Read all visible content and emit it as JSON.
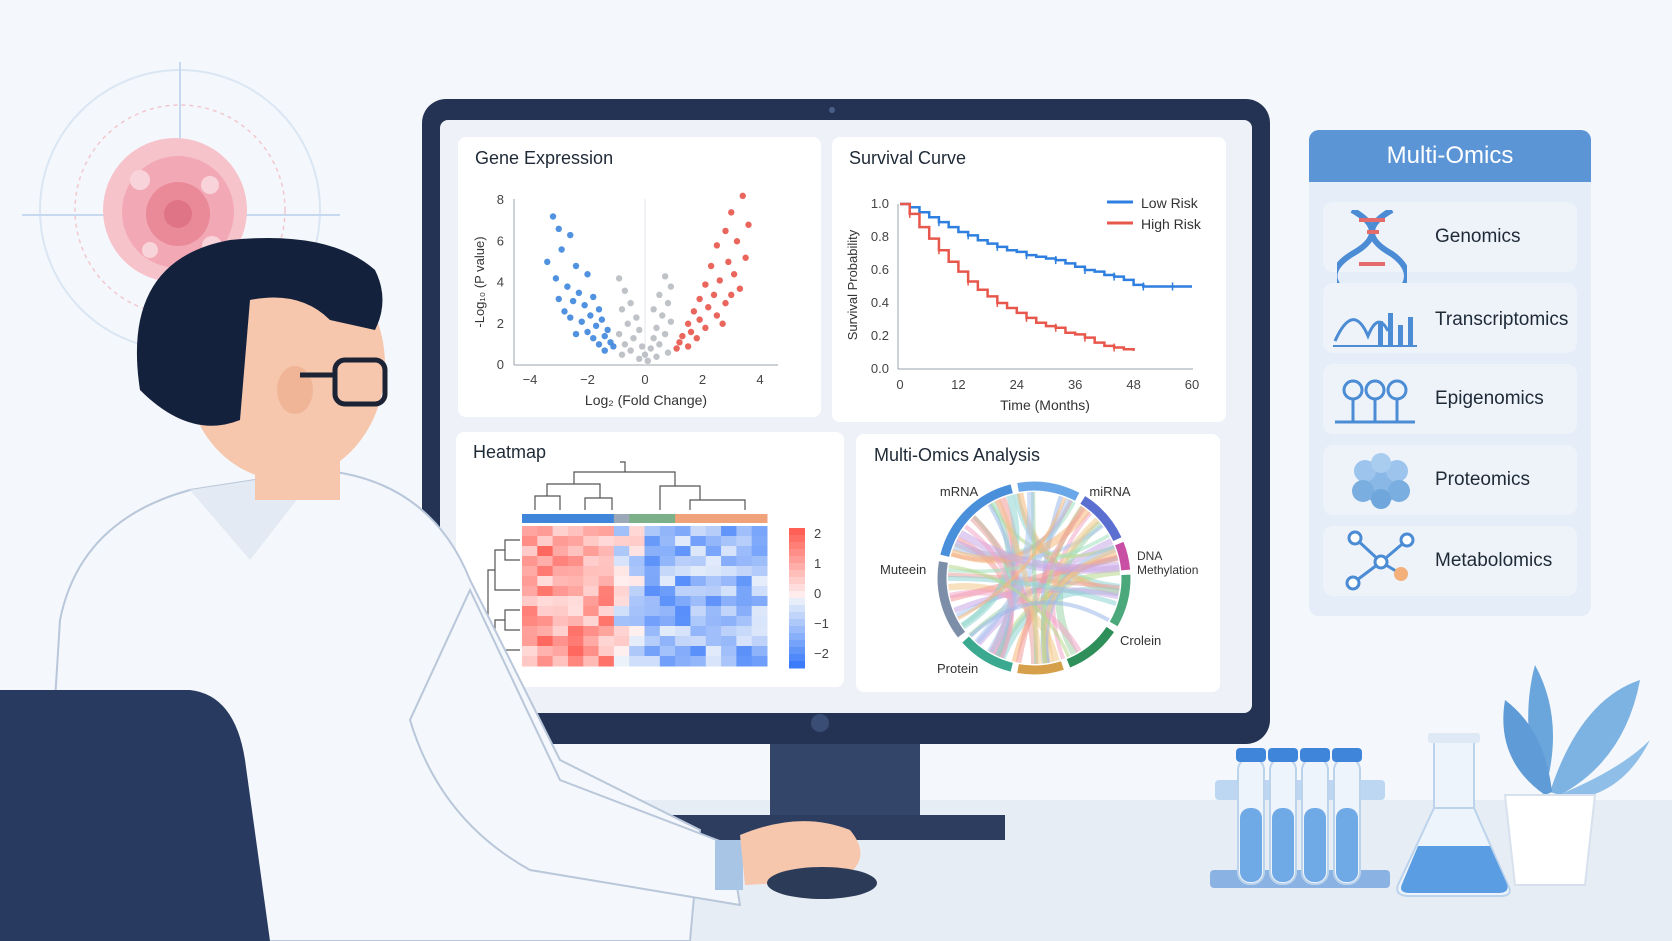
{
  "colors": {
    "up": "#e8554b",
    "down": "#3d86dc",
    "ns": "#b8bcc2",
    "low_risk": "#2f7fe0",
    "high_risk": "#e8574c",
    "accent": "#5b95d6"
  },
  "panels": {
    "gene_expression": "Gene Expression",
    "survival": "Survival Curve",
    "heatmap": "Heatmap",
    "multi_omics": "Multi-Omics Analysis"
  },
  "chart_data": [
    {
      "type": "scatter",
      "title": "Gene Expression",
      "xlabel": "Log₂ (Fold Change)",
      "ylabel": "-Log₁₀ (P value)",
      "xlim": [
        -4,
        4
      ],
      "ylim": [
        0,
        8
      ],
      "xticks": [
        "-4",
        "-2",
        "0",
        "2",
        "4"
      ],
      "yticks": [
        "0",
        "2",
        "4",
        "6",
        "8"
      ],
      "series": [
        {
          "group": "down",
          "points": [
            [
              -3.2,
              7.2
            ],
            [
              -3.0,
              6.6
            ],
            [
              -2.6,
              6.3
            ],
            [
              -2.9,
              5.6
            ],
            [
              -3.4,
              5.0
            ],
            [
              -2.4,
              4.8
            ],
            [
              -2.0,
              4.4
            ],
            [
              -3.1,
              4.2
            ],
            [
              -2.7,
              3.8
            ],
            [
              -2.3,
              3.5
            ],
            [
              -1.8,
              3.3
            ],
            [
              -2.5,
              3.1
            ],
            [
              -2.1,
              2.9
            ],
            [
              -1.6,
              2.7
            ],
            [
              -2.8,
              2.6
            ],
            [
              -1.9,
              2.4
            ],
            [
              -1.5,
              2.2
            ],
            [
              -2.2,
              2.1
            ],
            [
              -1.7,
              1.9
            ],
            [
              -1.3,
              1.7
            ],
            [
              -2.0,
              1.6
            ],
            [
              -1.4,
              1.4
            ],
            [
              -1.8,
              1.3
            ],
            [
              -1.2,
              1.1
            ],
            [
              -1.6,
              1.0
            ],
            [
              -1.1,
              0.9
            ],
            [
              -1.4,
              0.7
            ],
            [
              -2.4,
              1.5
            ],
            [
              -3.0,
              3.2
            ],
            [
              -2.6,
              2.3
            ]
          ]
        },
        {
          "group": "up",
          "points": [
            [
              3.4,
              8.2
            ],
            [
              3.0,
              7.4
            ],
            [
              3.6,
              6.8
            ],
            [
              2.8,
              6.5
            ],
            [
              3.2,
              6.0
            ],
            [
              2.5,
              5.8
            ],
            [
              3.5,
              5.2
            ],
            [
              2.9,
              5.0
            ],
            [
              2.3,
              4.8
            ],
            [
              3.1,
              4.4
            ],
            [
              2.6,
              4.1
            ],
            [
              2.1,
              3.9
            ],
            [
              3.3,
              3.7
            ],
            [
              2.4,
              3.4
            ],
            [
              1.9,
              3.2
            ],
            [
              2.8,
              3.0
            ],
            [
              2.2,
              2.8
            ],
            [
              1.7,
              2.6
            ],
            [
              2.5,
              2.4
            ],
            [
              1.9,
              2.2
            ],
            [
              1.5,
              2.0
            ],
            [
              2.1,
              1.8
            ],
            [
              1.6,
              1.6
            ],
            [
              1.3,
              1.4
            ],
            [
              1.8,
              1.3
            ],
            [
              1.2,
              1.1
            ],
            [
              1.5,
              0.9
            ],
            [
              1.1,
              0.8
            ],
            [
              2.7,
              2.0
            ],
            [
              3.0,
              3.4
            ]
          ]
        },
        {
          "group": "ns",
          "points": [
            [
              -0.9,
              4.2
            ],
            [
              -0.7,
              3.6
            ],
            [
              -0.5,
              3.0
            ],
            [
              -0.8,
              2.7
            ],
            [
              -0.3,
              2.3
            ],
            [
              -0.6,
              2.0
            ],
            [
              -0.2,
              1.7
            ],
            [
              -0.9,
              1.5
            ],
            [
              -0.4,
              1.3
            ],
            [
              -0.7,
              1.0
            ],
            [
              -0.1,
              0.9
            ],
            [
              -0.5,
              0.7
            ],
            [
              0.0,
              0.5
            ],
            [
              0.2,
              0.8
            ],
            [
              0.5,
              1.0
            ],
            [
              0.3,
              1.3
            ],
            [
              0.7,
              1.5
            ],
            [
              0.4,
              1.8
            ],
            [
              0.9,
              2.1
            ],
            [
              0.6,
              2.4
            ],
            [
              0.3,
              2.7
            ],
            [
              0.8,
              3.0
            ],
            [
              0.5,
              3.4
            ],
            [
              0.9,
              3.8
            ],
            [
              0.7,
              4.3
            ],
            [
              -0.2,
              0.3
            ],
            [
              0.1,
              0.2
            ],
            [
              -0.8,
              0.5
            ],
            [
              0.8,
              0.6
            ],
            [
              0.4,
              0.4
            ]
          ]
        }
      ]
    },
    {
      "type": "line",
      "title": "Survival Curve",
      "xlabel": "Time (Months)",
      "ylabel": "Survival Probability",
      "xlim": [
        0,
        60
      ],
      "ylim": [
        0,
        1
      ],
      "xticks": [
        "0",
        "12",
        "24",
        "36",
        "48",
        "60"
      ],
      "yticks": [
        "0.0",
        "0.2",
        "0.4",
        "0.6",
        "0.8",
        "1.0"
      ],
      "series": [
        {
          "name": "Low Risk",
          "x": [
            0,
            2,
            4,
            6,
            8,
            10,
            12,
            14,
            16,
            18,
            20,
            22,
            24,
            26,
            28,
            30,
            32,
            34,
            36,
            38,
            40,
            42,
            44,
            46,
            48,
            50,
            52,
            54,
            56,
            58,
            60
          ],
          "y": [
            1.0,
            0.98,
            0.95,
            0.92,
            0.89,
            0.86,
            0.83,
            0.81,
            0.78,
            0.76,
            0.74,
            0.72,
            0.71,
            0.69,
            0.68,
            0.67,
            0.66,
            0.64,
            0.62,
            0.6,
            0.59,
            0.57,
            0.56,
            0.54,
            0.51,
            0.5,
            0.5,
            0.5,
            0.5,
            0.5,
            0.5
          ]
        },
        {
          "name": "High Risk",
          "x": [
            0,
            2,
            4,
            6,
            8,
            10,
            12,
            14,
            16,
            18,
            20,
            22,
            24,
            26,
            28,
            30,
            32,
            34,
            36,
            38,
            40,
            42,
            44,
            46,
            48
          ],
          "y": [
            1.0,
            0.94,
            0.86,
            0.79,
            0.72,
            0.65,
            0.59,
            0.53,
            0.48,
            0.44,
            0.4,
            0.37,
            0.34,
            0.31,
            0.28,
            0.26,
            0.25,
            0.22,
            0.21,
            0.19,
            0.16,
            0.14,
            0.13,
            0.12,
            0.11
          ]
        }
      ]
    },
    {
      "type": "heatmap",
      "title": "Heatmap",
      "colorbar_ticks": [
        "2",
        "1",
        "0",
        "-1",
        "-2"
      ],
      "rows": 14,
      "cols": 16
    },
    {
      "type": "chord",
      "title": "Multi-Omics Analysis",
      "labels": [
        "mRNA",
        "miRNA",
        "DNA Methylation",
        "Crolein",
        "Protein",
        "Muteein"
      ]
    }
  ],
  "sidebar": {
    "title": "Multi-Omics",
    "items": [
      {
        "label": "Genomics",
        "icon": "dna-icon"
      },
      {
        "label": "Transcriptomics",
        "icon": "wave-icon"
      },
      {
        "label": "Epigenomics",
        "icon": "methylation-icon"
      },
      {
        "label": "Proteomics",
        "icon": "protein-icon"
      },
      {
        "label": "Metabolomics",
        "icon": "molecule-icon"
      }
    ]
  }
}
